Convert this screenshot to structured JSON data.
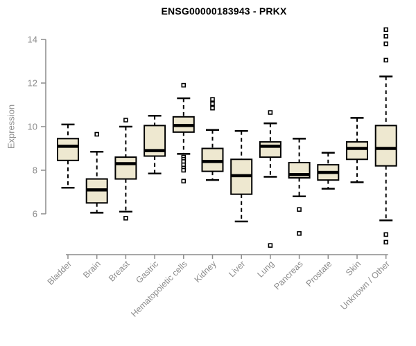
{
  "chart_data": {
    "type": "boxplot",
    "title": "ENSG00000183943 - PRKX",
    "ylabel": "Expression",
    "xlabel": "",
    "ylim": [
      6,
      14
    ],
    "yticks": [
      6,
      8,
      10,
      12,
      14
    ],
    "grid": false,
    "legend": "none",
    "colors": {
      "box_fill": "#EEE8D0",
      "box_stroke": "#000000",
      "median": "#000000",
      "axis": "#8C8C8C",
      "tick_label": "#8C8C8C",
      "title": "#000000",
      "outlier_fill": "#FFFFFF",
      "outlier_stroke": "#000000"
    },
    "categories": [
      "Bladder",
      "Brain",
      "Breast",
      "Gastric",
      "Hematopoietic cells",
      "Kidney",
      "Liver",
      "Lung",
      "Pancreas",
      "Prostate",
      "Skin",
      "Unknown / Other"
    ],
    "series": [
      {
        "name": "Bladder",
        "low": 7.2,
        "q1": 8.45,
        "median": 9.1,
        "q3": 9.45,
        "high": 10.1,
        "outliers": []
      },
      {
        "name": "Brain",
        "low": 6.05,
        "q1": 6.5,
        "median": 7.1,
        "q3": 7.6,
        "high": 8.85,
        "outliers": [
          9.65
        ]
      },
      {
        "name": "Breast",
        "low": 6.1,
        "q1": 7.6,
        "median": 8.3,
        "q3": 8.6,
        "high": 10.0,
        "outliers": [
          10.3,
          5.8
        ]
      },
      {
        "name": "Gastric",
        "low": 7.85,
        "q1": 8.65,
        "median": 8.9,
        "q3": 10.05,
        "high": 10.5,
        "outliers": []
      },
      {
        "name": "Hematopoietic cells",
        "low": 8.75,
        "q1": 9.75,
        "median": 10.05,
        "q3": 10.45,
        "high": 11.3,
        "outliers": [
          11.9,
          8.6,
          8.5,
          8.4,
          8.25,
          8.1,
          8.0,
          7.5
        ]
      },
      {
        "name": "Kidney",
        "low": 7.55,
        "q1": 7.95,
        "median": 8.4,
        "q3": 9.0,
        "high": 9.85,
        "outliers": [
          11.25,
          11.05,
          10.85
        ]
      },
      {
        "name": "Liver",
        "low": 5.65,
        "q1": 6.9,
        "median": 7.75,
        "q3": 8.5,
        "high": 9.8,
        "outliers": []
      },
      {
        "name": "Lung",
        "low": 7.7,
        "q1": 8.6,
        "median": 9.1,
        "q3": 9.3,
        "high": 10.15,
        "outliers": [
          10.65,
          4.55
        ]
      },
      {
        "name": "Pancreas",
        "low": 6.8,
        "q1": 7.65,
        "median": 7.8,
        "q3": 8.35,
        "high": 9.45,
        "outliers": [
          6.2,
          5.1
        ]
      },
      {
        "name": "Prostate",
        "low": 7.15,
        "q1": 7.55,
        "median": 7.9,
        "q3": 8.25,
        "high": 8.8,
        "outliers": []
      },
      {
        "name": "Skin",
        "low": 7.45,
        "q1": 8.5,
        "median": 9.0,
        "q3": 9.3,
        "high": 10.4,
        "outliers": []
      },
      {
        "name": "Unknown / Other",
        "low": 5.7,
        "q1": 8.2,
        "median": 9.0,
        "q3": 10.05,
        "high": 12.3,
        "outliers": [
          14.45,
          14.15,
          13.8,
          13.05,
          5.05,
          4.7
        ]
      }
    ]
  }
}
